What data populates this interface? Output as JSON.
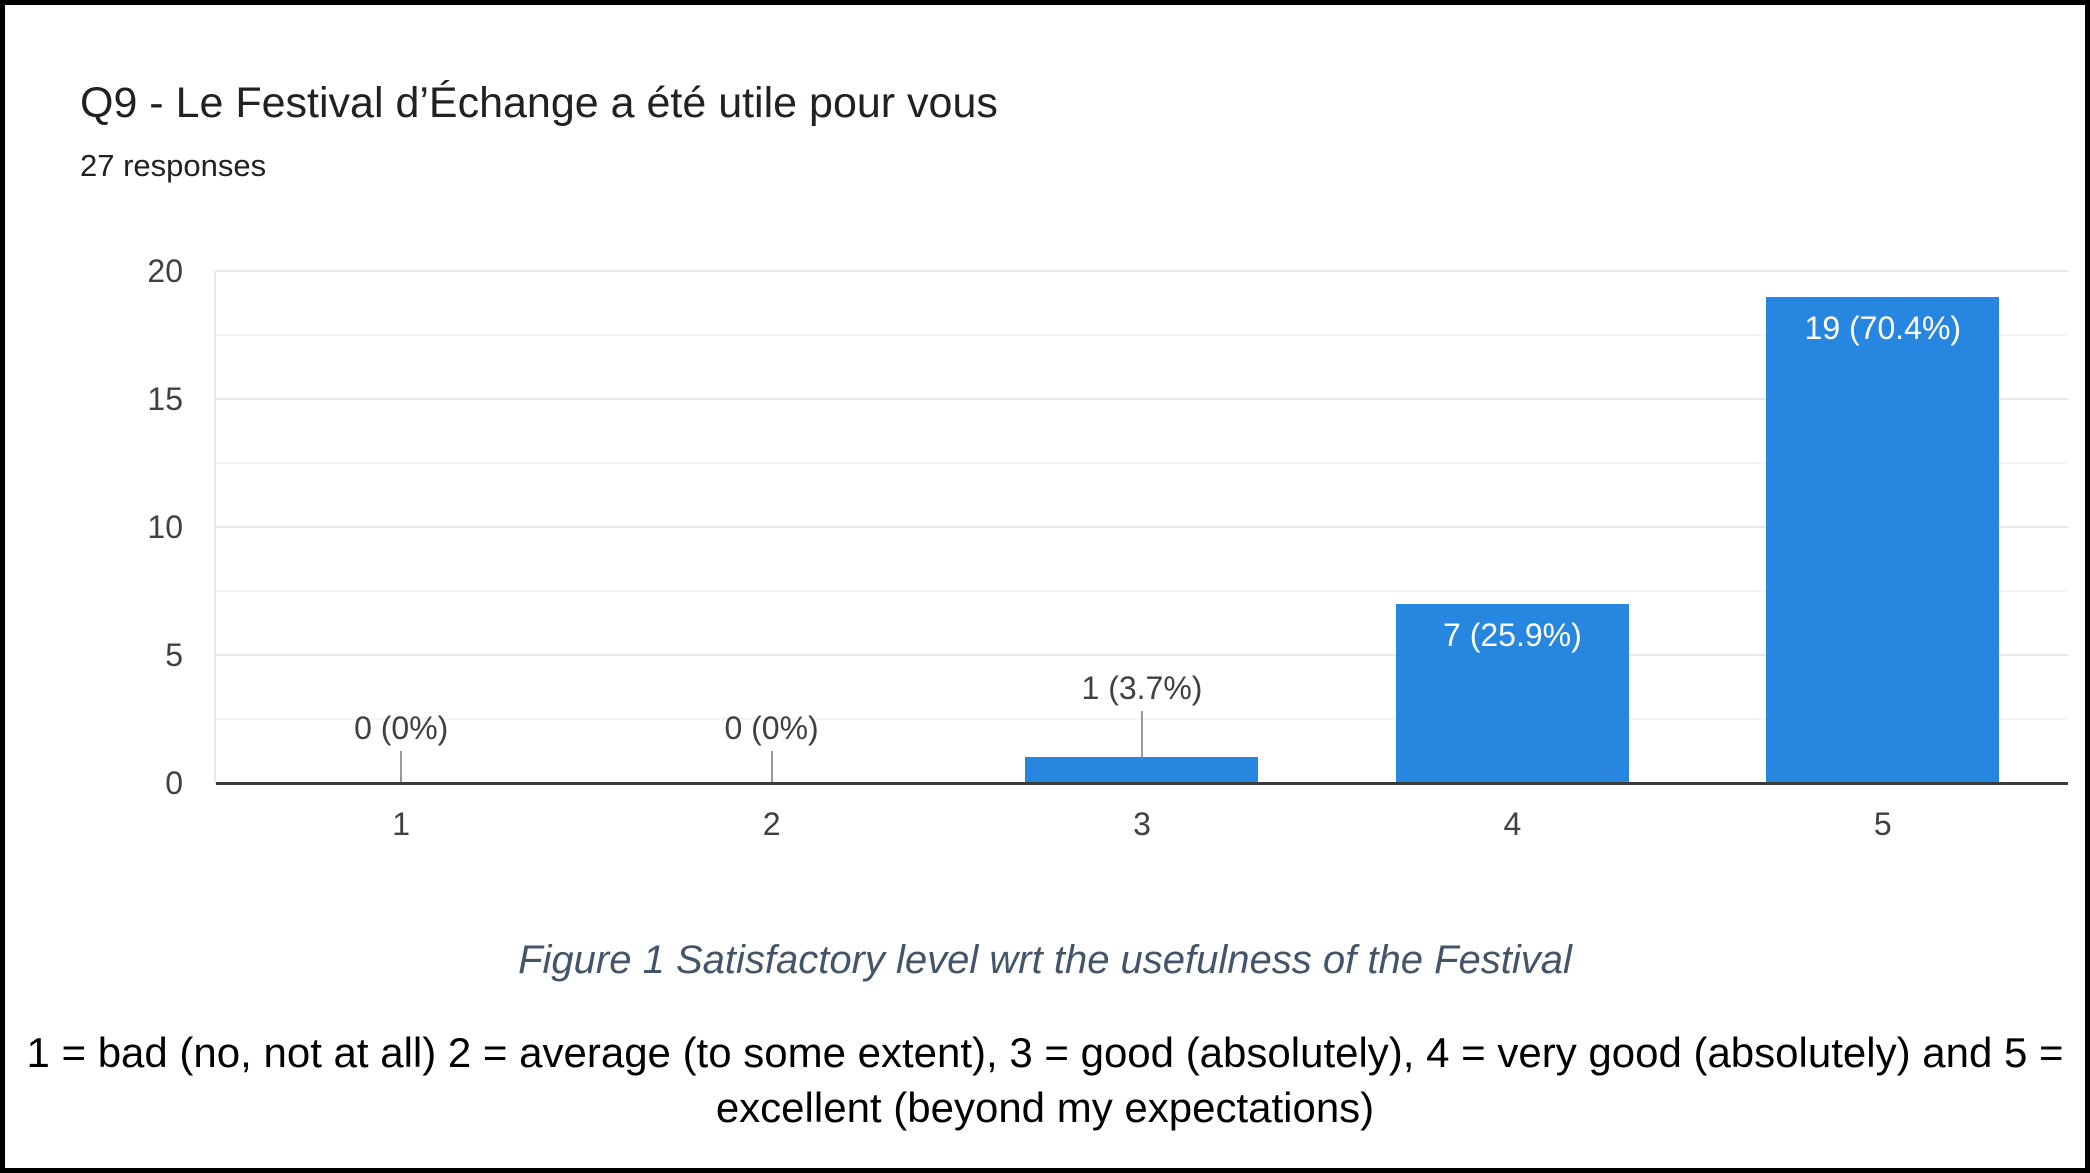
{
  "page": {
    "caption": "Figure 1 Satisfactory level wrt the usefulness of the Festival",
    "scale_note": "1 = bad (no, not at all) 2 = average (to some extent), 3 = good (absolutely), 4 = very good (absolutely) and 5 = excellent (beyond my expectations)"
  },
  "chart_data": {
    "type": "bar",
    "title": "Q9 - Le Festival d’Échange a été utile pour vous",
    "subtitle": "27 responses",
    "total_responses": 27,
    "categories": [
      "1",
      "2",
      "3",
      "4",
      "5"
    ],
    "values": [
      0,
      0,
      1,
      7,
      19
    ],
    "labels": [
      "0 (0%)",
      "0 (0%)",
      "1 (3.7%)",
      "7 (25.9%)",
      "19 (70.4%)"
    ],
    "xlabel": "",
    "ylabel": "",
    "ylim": [
      0,
      20
    ],
    "yticks": [
      0,
      5,
      10,
      15,
      20
    ],
    "minor_grid_step": 2.5,
    "grid": true,
    "legend": "none",
    "bar_color": "#2787e0",
    "annotation_inside_color": "#ffffff",
    "annotation_outside_color": "#404040",
    "callout_line_color": "#9a9a9a",
    "gridline_major_color": "#e9e9e9",
    "gridline_minor_color": "#f5f5f5",
    "baseline_color": "#3a3a3a",
    "caption_color": "#44546a"
  }
}
